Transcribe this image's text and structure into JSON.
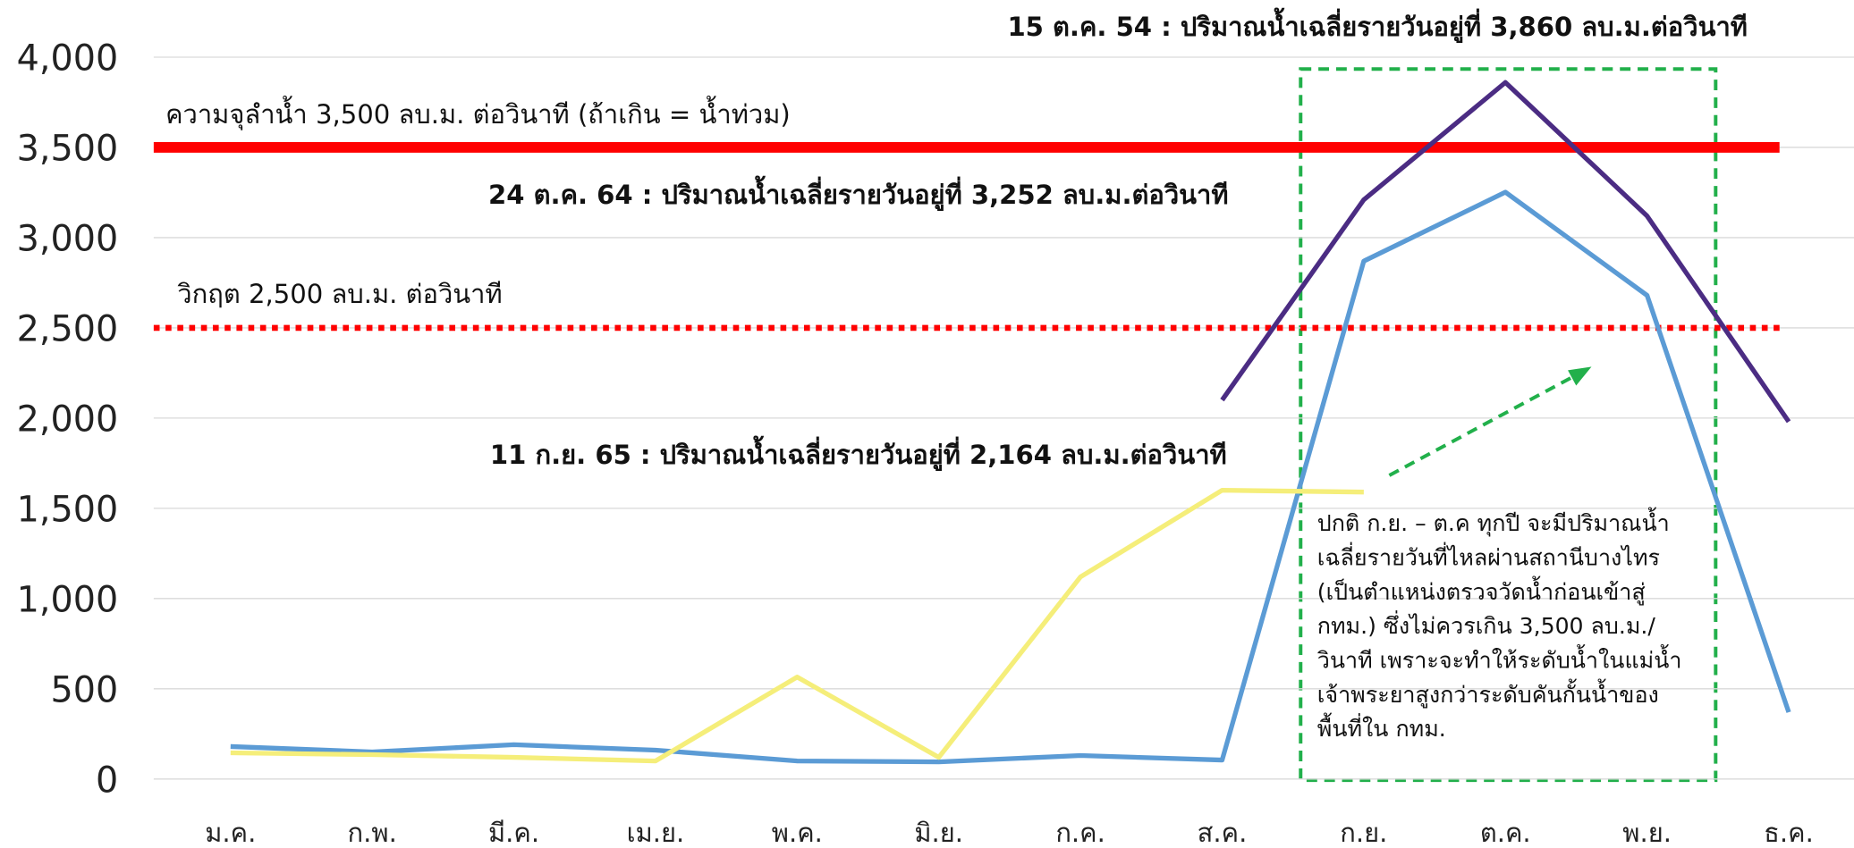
{
  "chart_data": {
    "type": "line",
    "categories": [
      "ม.ค.",
      "ก.พ.",
      "มี.ค.",
      "เม.ย.",
      "พ.ค.",
      "มิ.ย.",
      "ก.ค.",
      "ส.ค.",
      "ก.ย.",
      "ต.ค.",
      "พ.ย.",
      "ธ.ค."
    ],
    "series": [
      {
        "color": "#4b2c83",
        "values": [
          null,
          null,
          null,
          null,
          null,
          null,
          null,
          2100,
          3210,
          3860,
          3120,
          1980
        ]
      },
      {
        "color": "#5b9bd5",
        "values": [
          180,
          150,
          190,
          160,
          100,
          95,
          130,
          105,
          2870,
          3252,
          2680,
          370
        ]
      },
      {
        "color": "#f5ee7a",
        "values": [
          145,
          135,
          120,
          100,
          565,
          120,
          1120,
          1600,
          1590,
          null,
          null,
          null
        ]
      }
    ],
    "ylim": [
      0,
      4000
    ],
    "yticks": [
      0,
      500,
      {
        "value": 1000,
        "label": "1,000"
      },
      {
        "value": 1500,
        "label": "1,500"
      },
      {
        "value": 2000,
        "label": "2,000"
      },
      {
        "value": 2500,
        "label": "2,500"
      },
      {
        "value": 3000,
        "label": "3,000"
      },
      {
        "value": 3500,
        "label": "3,500"
      },
      {
        "value": 4000,
        "label": "4,000"
      }
    ],
    "grid": true,
    "reference_lines": [
      {
        "value": 3500,
        "label": "ความจุลำน้ำ 3,500 ลบ.ม. ต่อวินาที (ถ้าเกิน = น้ำท่วม)",
        "color": "#ff0000",
        "style": "solid"
      },
      {
        "value": 2500,
        "label": "วิกฤต 2,500 ลบ.ม. ต่อวินาที",
        "color": "#ff0000",
        "style": "dotted"
      }
    ],
    "annotations": [
      "15 ต.ค. 54 : ปริมาณน้ำเฉลี่ยรายวันอยู่ที่ 3,860 ลบ.ม.ต่อวินาที",
      "24 ต.ค. 64 : ปริมาณน้ำเฉลี่ยรายวันอยู่ที่ 3,252 ลบ.ม.ต่อวินาที",
      "11 ก.ย. 65 : ปริมาณน้ำเฉลี่ยรายวันอยู่ที่ 2,164 ลบ.ม.ต่อวินาที"
    ],
    "note_lines": [
      "ปกติ ก.ย. – ต.ค ทุกปี จะมีปริมาณน้ำ",
      "เฉลี่ยรายวันที่ไหลผ่านสถานีบางไทร",
      "(เป็นตำแหน่งตรวจวัดน้ำก่อนเข้าสู่",
      "กทม.) ซึ่งไม่ควรเกิน 3,500 ลบ.ม./",
      "วินาที เพราะจะทำให้ระดับน้ำในแม่น้ำ",
      "เจ้าพระยาสูงกว่าระดับคันกั้นน้ำของ",
      "พื้นที่ใน กทม."
    ]
  }
}
